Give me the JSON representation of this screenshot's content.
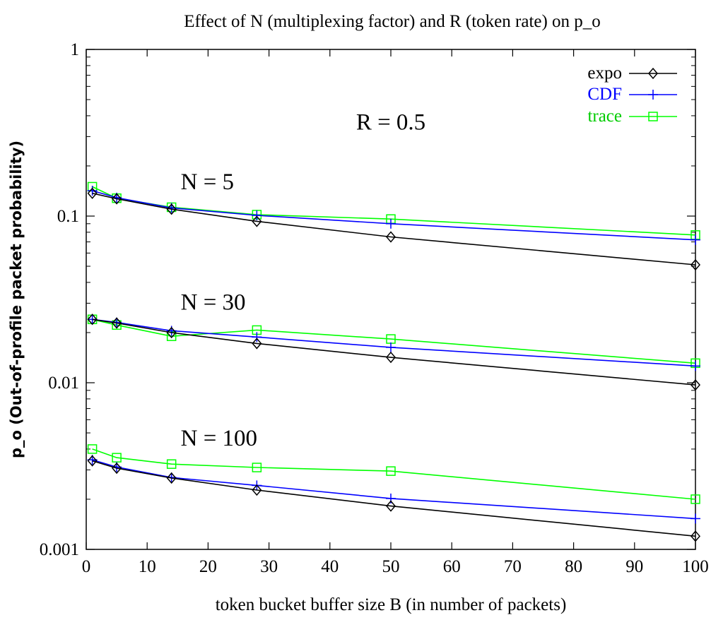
{
  "chart_data": {
    "type": "line",
    "title": "Effect of N (multiplexing factor) and R (token rate) on p_o",
    "xlabel": "token bucket buffer size B (in number of packets)",
    "ylabel": "p_o (Out-of-profile packet probability)",
    "xlim": [
      0,
      100
    ],
    "ylim": [
      0.001,
      1
    ],
    "yscale": "log",
    "x_ticks": [
      "0",
      "10",
      "20",
      "30",
      "40",
      "50",
      "60",
      "70",
      "80",
      "90",
      "100"
    ],
    "y_ticks": [
      "0.001",
      "0.01",
      "0.1",
      "1"
    ],
    "grid": false,
    "legend_position": "top-right",
    "legend": [
      {
        "label": "expo",
        "color": "#000000",
        "marker": "diamond"
      },
      {
        "label": "CDF",
        "color": "#0000ff",
        "marker": "plus"
      },
      {
        "label": "trace",
        "color": "#00ff00",
        "marker": "square"
      }
    ],
    "annotations": [
      {
        "text": "R = 0.5",
        "x": 50,
        "y": 0.33
      },
      {
        "text": "N = 5",
        "x": 15.5,
        "y": 0.145
      },
      {
        "text": "N = 30",
        "x": 15.5,
        "y": 0.0275
      },
      {
        "text": "N = 100",
        "x": 15.5,
        "y": 0.0042
      }
    ],
    "groups": [
      {
        "group": "N = 5",
        "series": [
          {
            "name": "expo",
            "x": [
              1,
              5,
              14,
              28,
              50,
              100
            ],
            "y": [
              0.137,
              0.127,
              0.11,
              0.093,
              0.075,
              0.051
            ]
          },
          {
            "name": "CDF",
            "x": [
              1,
              5,
              14,
              28,
              50,
              100
            ],
            "y": [
              0.142,
              0.129,
              0.112,
              0.101,
              0.09,
              0.072
            ]
          },
          {
            "name": "trace",
            "x": [
              1,
              5,
              14,
              28,
              50,
              100
            ],
            "y": [
              0.15,
              0.128,
              0.113,
              0.102,
              0.096,
              0.077
            ]
          }
        ]
      },
      {
        "group": "N = 30",
        "series": [
          {
            "name": "expo",
            "x": [
              1,
              5,
              14,
              28,
              50,
              100
            ],
            "y": [
              0.024,
              0.0228,
              0.02,
              0.0172,
              0.0142,
              0.0097
            ]
          },
          {
            "name": "CDF",
            "x": [
              1,
              5,
              14,
              28,
              50,
              100
            ],
            "y": [
              0.024,
              0.023,
              0.0205,
              0.0188,
              0.0163,
              0.0126
            ]
          },
          {
            "name": "trace",
            "x": [
              1,
              5,
              14,
              28,
              50,
              100
            ],
            "y": [
              0.024,
              0.0222,
              0.019,
              0.0207,
              0.0183,
              0.0131
            ]
          }
        ]
      },
      {
        "group": "N = 100",
        "series": [
          {
            "name": "expo",
            "x": [
              1,
              5,
              14,
              28,
              50,
              100
            ],
            "y": [
              0.0034,
              0.00307,
              0.00268,
              0.00227,
              0.00182,
              0.0012
            ]
          },
          {
            "name": "CDF",
            "x": [
              1,
              5,
              14,
              28,
              50,
              100
            ],
            "y": [
              0.00345,
              0.00312,
              0.0027,
              0.00242,
              0.00202,
              0.00153
            ]
          },
          {
            "name": "trace",
            "x": [
              1,
              5,
              14,
              28,
              50,
              100
            ],
            "y": [
              0.004,
              0.00355,
              0.00325,
              0.0031,
              0.00295,
              0.002
            ]
          }
        ]
      }
    ]
  }
}
